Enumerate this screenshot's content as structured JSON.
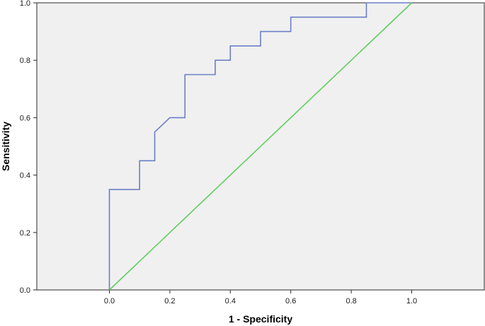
{
  "chart_data": {
    "type": "line",
    "title": "",
    "xlabel": "1 - Specificity",
    "ylabel": "Sensitivity",
    "xlim": [
      -0.24,
      1.24
    ],
    "ylim": [
      0,
      1
    ],
    "x_ticks": [
      0.0,
      0.2,
      0.4,
      0.6,
      0.8,
      1.0
    ],
    "y_ticks": [
      0.0,
      0.2,
      0.4,
      0.6,
      0.8,
      1.0
    ],
    "x_tick_labels": [
      "0.0",
      "0.2",
      "0.4",
      "0.6",
      "0.8",
      "1.0"
    ],
    "y_tick_labels": [
      "0.0",
      "0.2",
      "0.4",
      "0.6",
      "0.8",
      "1.0"
    ],
    "grid": false,
    "legend": "none",
    "plot_background": "#f0f0f0",
    "series": [
      {
        "color": "#6b7fc5",
        "step": true,
        "x": [
          0.0,
          0.0,
          0.1,
          0.1,
          0.15,
          0.15,
          0.2,
          0.25,
          0.25,
          0.35,
          0.35,
          0.4,
          0.4,
          0.5,
          0.5,
          0.6,
          0.6,
          0.85,
          0.85,
          1.0
        ],
        "y": [
          0.0,
          0.35,
          0.35,
          0.45,
          0.45,
          0.55,
          0.6,
          0.6,
          0.75,
          0.75,
          0.8,
          0.8,
          0.85,
          0.85,
          0.9,
          0.9,
          0.95,
          0.95,
          1.0,
          1.0
        ]
      },
      {
        "color": "#5fcf5f",
        "step": false,
        "x": [
          0.0,
          1.0
        ],
        "y": [
          0.0,
          1.0
        ]
      }
    ]
  }
}
